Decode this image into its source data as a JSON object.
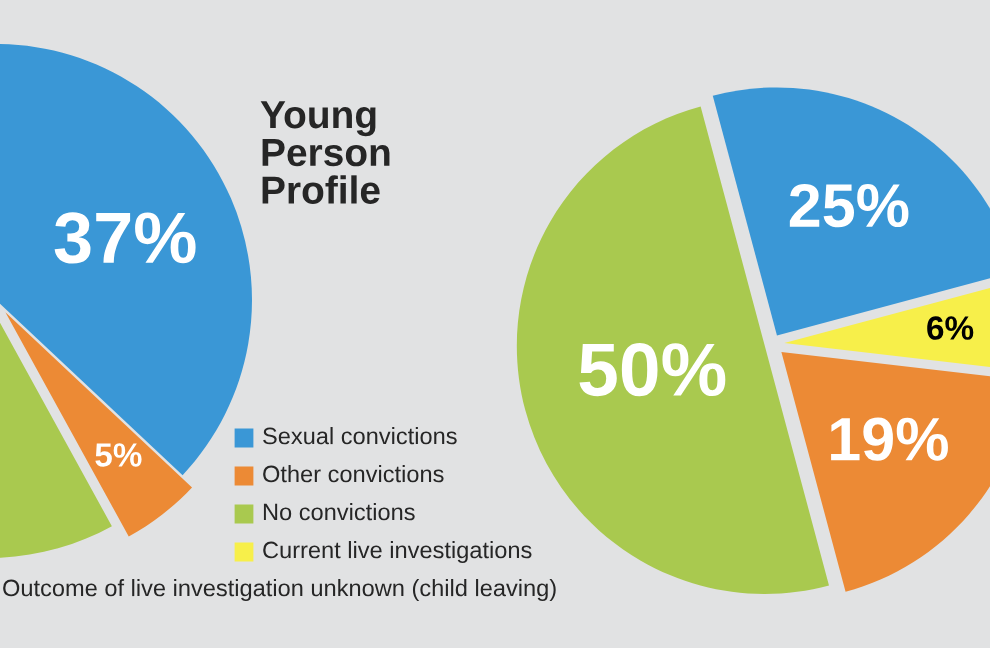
{
  "chart_data": [
    {
      "type": "pie",
      "title": "Young Person Profile",
      "categories": [
        "Sexual convictions",
        "Other convictions",
        "No convictions",
        "Current live investigations",
        "Outcome of live investigation unknown (child leaving)"
      ],
      "values": [
        37,
        5,
        58,
        null,
        null
      ],
      "colors": [
        "#3a97d6",
        "#ec8a35",
        "#a9c94f",
        "#f7ef4a",
        null
      ],
      "value_labels": [
        "37%",
        "5%",
        null,
        null,
        null
      ],
      "legend": "right"
    },
    {
      "type": "pie",
      "categories": [
        null,
        null,
        null,
        null
      ],
      "values": [
        25,
        6,
        19,
        50
      ],
      "colors": [
        "#3a97d6",
        "#f7ef4a",
        "#ec8a35",
        "#a9c94f"
      ],
      "value_labels": [
        "25%",
        "6%",
        "19%",
        "50%"
      ],
      "legend": false
    }
  ]
}
